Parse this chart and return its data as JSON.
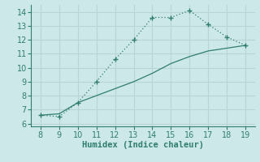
{
  "x_upper": [
    8,
    9,
    10,
    11,
    12,
    13,
    14,
    15,
    16,
    17,
    18,
    19
  ],
  "y_upper": [
    6.6,
    6.5,
    7.5,
    9.0,
    10.6,
    12.0,
    13.6,
    13.6,
    14.1,
    13.1,
    12.2,
    11.6
  ],
  "x_lower": [
    8,
    9,
    10,
    11,
    12,
    13,
    14,
    15,
    16,
    17,
    18,
    19
  ],
  "y_lower": [
    6.6,
    6.7,
    7.5,
    8.0,
    8.5,
    9.0,
    9.6,
    10.3,
    10.8,
    11.2,
    11.4,
    11.6
  ],
  "line_color": "#2e7d6e",
  "bg_color": "#cde8e8",
  "grid_color": "#b8d4d4",
  "xlabel": "Humidex (Indice chaleur)",
  "xlim": [
    7.5,
    19.5
  ],
  "ylim": [
    5.8,
    14.5
  ],
  "xticks": [
    8,
    9,
    10,
    11,
    12,
    13,
    14,
    15,
    16,
    17,
    18,
    19
  ],
  "yticks": [
    6,
    7,
    8,
    9,
    10,
    11,
    12,
    13,
    14
  ],
  "marker_size": 5,
  "line_width": 1.0,
  "font_size": 7.5
}
